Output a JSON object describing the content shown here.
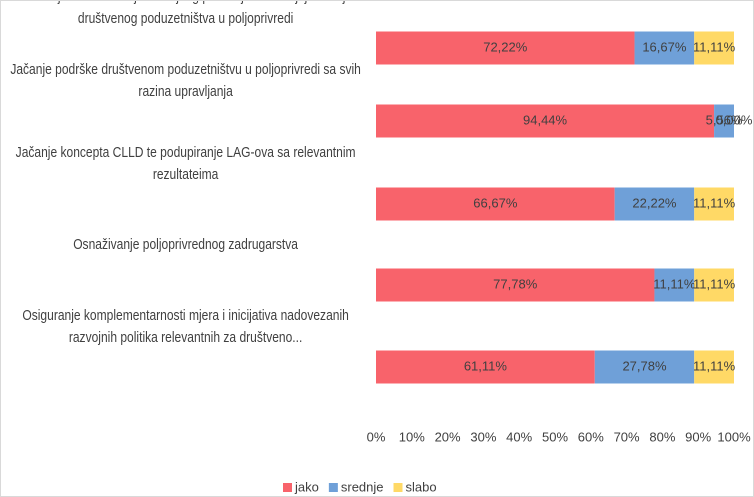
{
  "chart_data": {
    "type": "stacked_barh",
    "categories": [
      "Jačanje iskorištavanja razvojnog potencijala za daljnji razvoj društvenog poduzetništva u poljoprivredi",
      "Jačanje  podrške društvenom poduzetništvu u poljoprivredi sa svih razina upravljanja",
      "Jačanje koncepta CLLD te podupiranje LAG-ova sa relevantnim rezultateima",
      "Osnaživanje poljoprivrednog  zadrugarstva",
      "Osiguranje komplementarnosti mjera i inicijativa nadovezanih razvojnih politika relevantnih za društveno..."
    ],
    "series": [
      {
        "name": "jako",
        "color": "#f8636b",
        "values": [
          72.22,
          94.44,
          66.67,
          77.78,
          61.11
        ],
        "value_labels": [
          "72,22%",
          "94,44%",
          "66,67%",
          "77,78%",
          "61,11%"
        ]
      },
      {
        "name": "srednje",
        "color": "#6fa0d8",
        "values": [
          16.67,
          5.56,
          22.22,
          11.11,
          27.78
        ],
        "value_labels": [
          "16,67%",
          "5,56%",
          "22,22%",
          "11,11%",
          "27,78%"
        ]
      },
      {
        "name": "slabo",
        "color": "#ffd966",
        "values": [
          11.11,
          0,
          11.11,
          11.11,
          11.11
        ],
        "value_labels": [
          "11,11%",
          "0,00%",
          "11,11%",
          "11,11%",
          "11,11%"
        ]
      }
    ],
    "xlim": [
      0,
      100
    ],
    "xticks": [
      {
        "value": 0,
        "label": "0%"
      },
      {
        "value": 10,
        "label": "10%"
      },
      {
        "value": 20,
        "label": "20%"
      },
      {
        "value": 30,
        "label": "30%"
      },
      {
        "value": 40,
        "label": "40%"
      },
      {
        "value": 50,
        "label": "50%"
      },
      {
        "value": 60,
        "label": "60%"
      },
      {
        "value": 70,
        "label": "70%"
      },
      {
        "value": 80,
        "label": "80%"
      },
      {
        "value": 90,
        "label": "90%"
      },
      {
        "value": 100,
        "label": "100%"
      }
    ],
    "legend": "bottom"
  }
}
